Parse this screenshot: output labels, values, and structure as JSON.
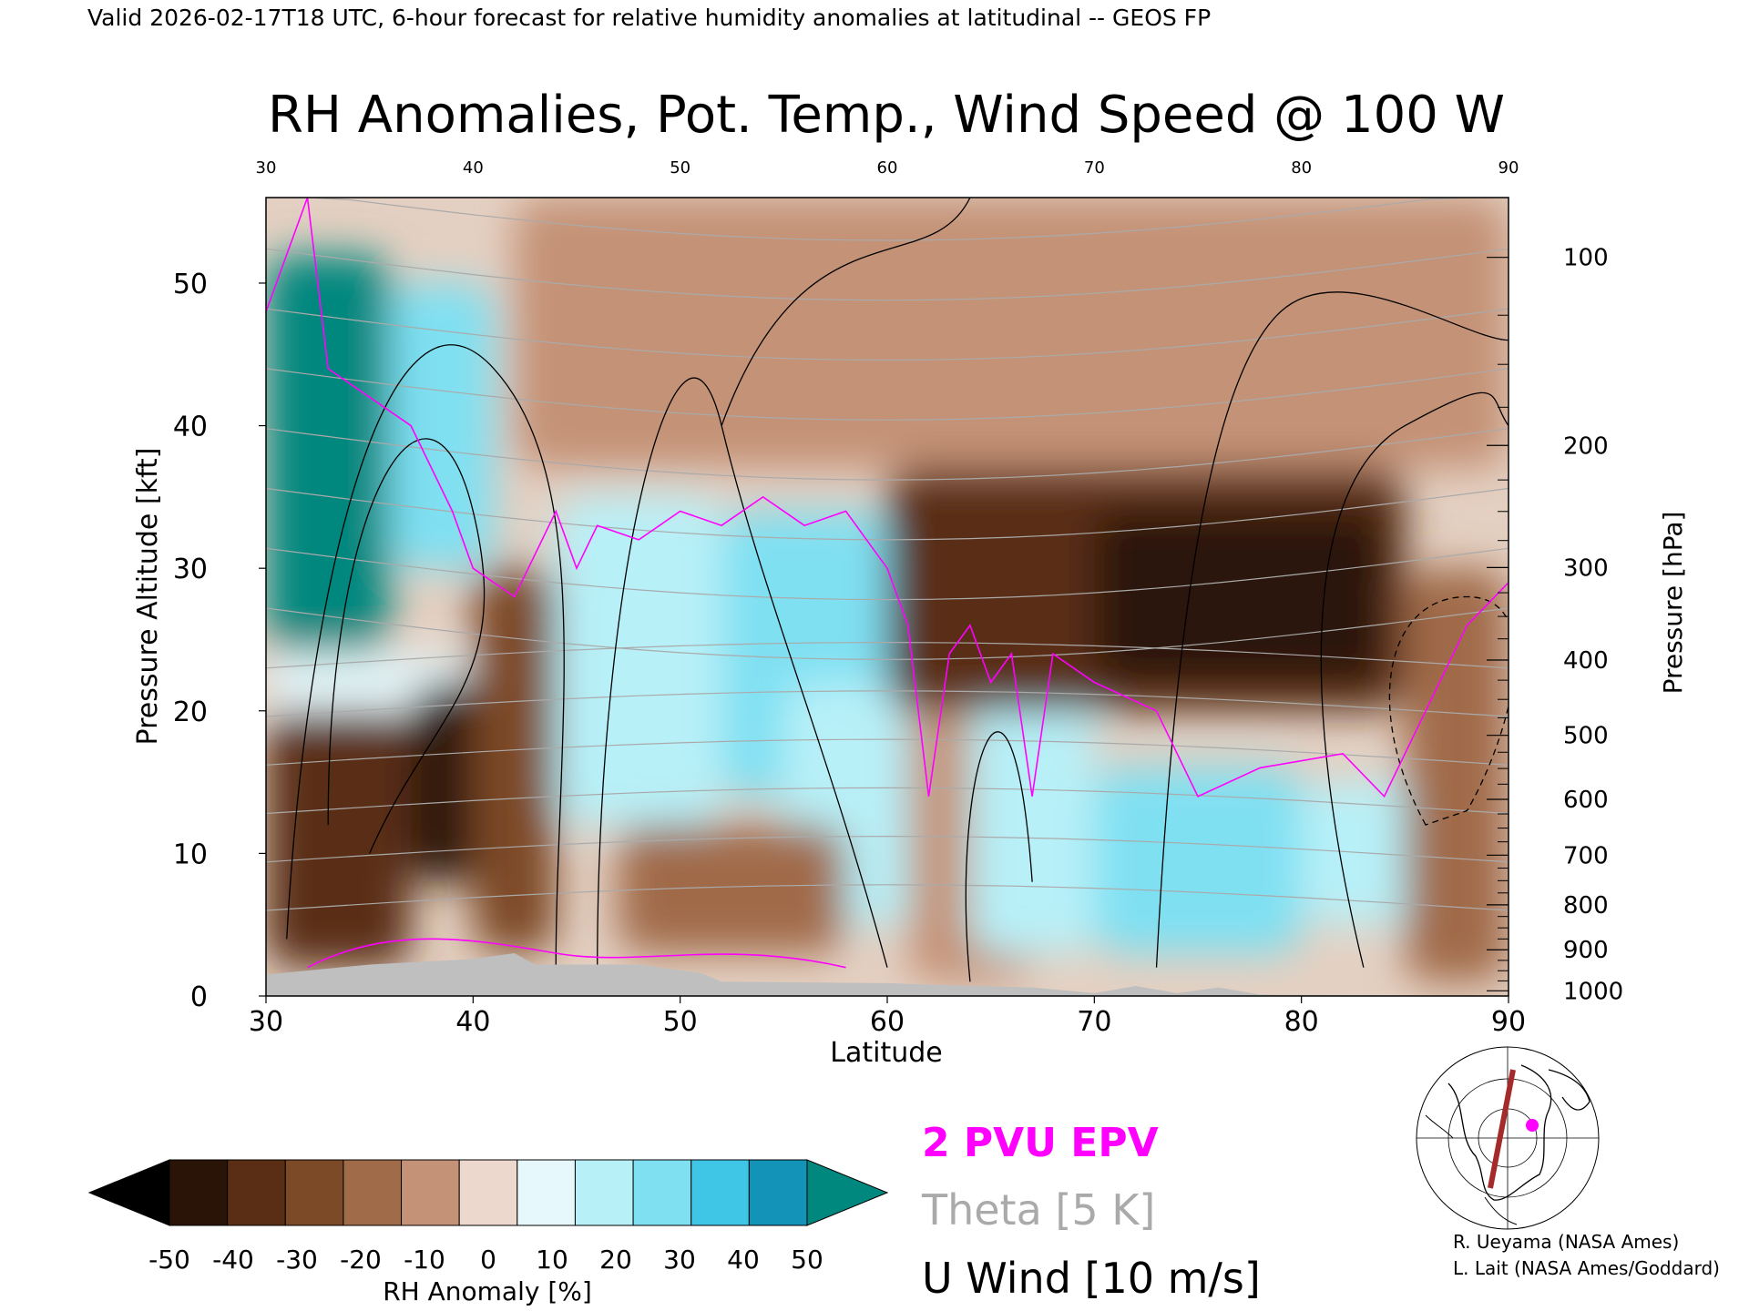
{
  "header": {
    "valid_line": "Valid 2026-02-17T18 UTC, 6-hour forecast for relative humidity anomalies at latitudinal -- GEOS FP"
  },
  "chart_data": {
    "type": "heatmap",
    "title": "RH Anomalies, Pot. Temp., Wind Speed @ 100 W",
    "xlabel": "Latitude",
    "ylabel_left": "Pressure Altitude [kft]",
    "ylabel_right": "Pressure [hPa]",
    "xlim": [
      30,
      90
    ],
    "ylim_kft": [
      0,
      56
    ],
    "x_ticks": [
      30,
      40,
      50,
      60,
      70,
      80,
      90
    ],
    "x_tick_labels": [
      "30",
      "40",
      "50",
      "60",
      "70",
      "80",
      "90"
    ],
    "y_ticks_kft": [
      0,
      10,
      20,
      30,
      40,
      50
    ],
    "y_tick_labels": [
      "0",
      "10",
      "20",
      "30",
      "40",
      "50"
    ],
    "pressure_ticks": [
      {
        "hpa": 100,
        "label": "100"
      },
      {
        "hpa": 200,
        "label": "200"
      },
      {
        "hpa": 300,
        "label": "300"
      },
      {
        "hpa": 400,
        "label": "400"
      },
      {
        "hpa": 500,
        "label": "500"
      },
      {
        "hpa": 600,
        "label": "600"
      },
      {
        "hpa": 700,
        "label": "700"
      },
      {
        "hpa": 800,
        "label": "800"
      },
      {
        "hpa": 900,
        "label": "900"
      },
      {
        "hpa": 1000,
        "label": "1000"
      }
    ],
    "pressure_minor_ticks": [
      125,
      150,
      175,
      225,
      250,
      275,
      325,
      350,
      375,
      425,
      450,
      475,
      525,
      550,
      575,
      625,
      650,
      675,
      725,
      750,
      775,
      825,
      850,
      875,
      925,
      950,
      975
    ],
    "rh_cells": [
      {
        "lat": [
          30,
          36
        ],
        "kft": [
          24,
          52
        ],
        "anom": 50
      },
      {
        "lat": [
          36,
          41
        ],
        "kft": [
          30,
          50
        ],
        "anom": 35
      },
      {
        "lat": [
          30,
          40
        ],
        "kft": [
          20,
          24
        ],
        "anom": 15
      },
      {
        "lat": [
          30,
          37
        ],
        "kft": [
          2,
          20
        ],
        "anom": -40
      },
      {
        "lat": [
          37,
          42
        ],
        "kft": [
          8,
          22
        ],
        "anom": -45
      },
      {
        "lat": [
          40,
          44
        ],
        "kft": [
          3,
          30
        ],
        "anom": -30
      },
      {
        "lat": [
          44,
          52
        ],
        "kft": [
          12,
          35
        ],
        "anom": 25
      },
      {
        "lat": [
          52,
          60
        ],
        "kft": [
          14,
          34
        ],
        "anom": 30
      },
      {
        "lat": [
          55,
          62
        ],
        "kft": [
          5,
          22
        ],
        "anom": 20
      },
      {
        "lat": [
          47,
          58
        ],
        "kft": [
          3,
          12
        ],
        "anom": -15
      },
      {
        "lat": [
          61,
          67
        ],
        "kft": [
          1,
          27
        ],
        "anom": -10
      },
      {
        "lat": [
          64,
          70
        ],
        "kft": [
          3,
          22
        ],
        "anom": 20
      },
      {
        "lat": [
          70,
          80
        ],
        "kft": [
          3,
          16
        ],
        "anom": 30
      },
      {
        "lat": [
          80,
          86
        ],
        "kft": [
          5,
          15
        ],
        "anom": 20
      },
      {
        "lat": [
          60,
          85
        ],
        "kft": [
          20,
          37
        ],
        "anom": -35
      },
      {
        "lat": [
          70,
          84
        ],
        "kft": [
          22,
          34
        ],
        "anom": -45
      },
      {
        "lat": [
          42,
          90
        ],
        "kft": [
          37,
          56
        ],
        "anom": -10
      },
      {
        "lat": [
          85,
          90
        ],
        "kft": [
          1,
          30
        ],
        "anom": -20
      }
    ],
    "theta_levels": [
      "280",
      "290",
      "300",
      "310",
      "320",
      "330",
      "340",
      "350",
      "360",
      "370",
      "380",
      "390",
      "400",
      "410",
      "420"
    ],
    "colorbar": {
      "label": "RH Anomaly [%]",
      "ticks": [
        "-50",
        "-40",
        "-30",
        "-20",
        "-10",
        "0",
        "10",
        "20",
        "30",
        "40",
        "50"
      ],
      "colors": [
        "#2a1408",
        "#5a2e14",
        "#7d4a28",
        "#a06b48",
        "#c49276",
        "#ecd8cc",
        "#e6f8fb",
        "#b8f0f8",
        "#7fe0f2",
        "#3fc6e6",
        "#1493b8"
      ],
      "under_color": "#000000",
      "over_color": "#00877e"
    },
    "legend": [
      {
        "label": "2 PVU EPV",
        "color": "#ff00ff"
      },
      {
        "label": "Theta [5 K]",
        "color": "#aaaaaa"
      },
      {
        "label": "U Wind [10 m/s]",
        "color": "#000000"
      }
    ]
  },
  "credits": {
    "line1": "R. Ueyama (NASA Ames)",
    "line2": "L. Lait (NASA Ames/Goddard)"
  },
  "colors": {
    "epv": "#ff00ff",
    "theta": "#aaaaaa",
    "terrain": "#bfbfbf",
    "section_line": "#a52a2a"
  }
}
